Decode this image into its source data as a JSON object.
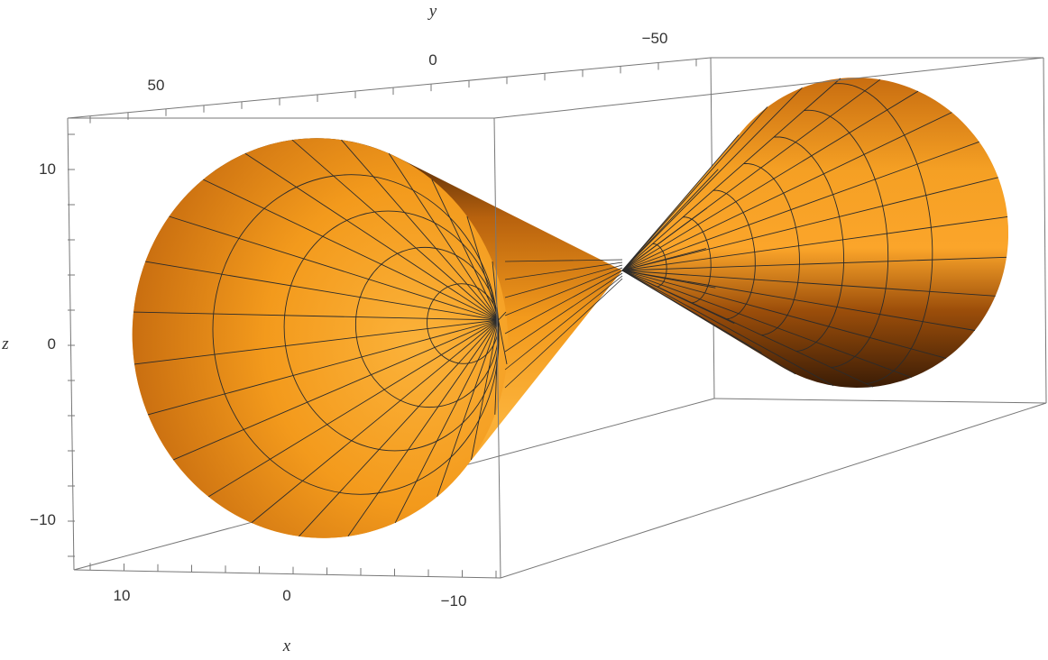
{
  "chart_data": {
    "type": "surface3d",
    "title": "",
    "surface": "cone",
    "colors": {
      "base": "#f39a1c",
      "light": "#fbb23a",
      "dark": "#3a1c06",
      "mesh": "#2b2b2b"
    },
    "axes": {
      "x": {
        "label": "x",
        "range": [
          -13,
          13
        ],
        "ticks": [
          10,
          0,
          -10
        ]
      },
      "y": {
        "label": "y",
        "range": [
          -90,
          90
        ],
        "ticks": [
          50,
          0,
          -50
        ]
      },
      "z": {
        "label": "z",
        "range": [
          -13,
          13
        ],
        "ticks": [
          10,
          0,
          -10
        ]
      }
    },
    "mesh": {
      "radial_lines": 24,
      "rings_per_side": 4
    },
    "boxed": true
  }
}
